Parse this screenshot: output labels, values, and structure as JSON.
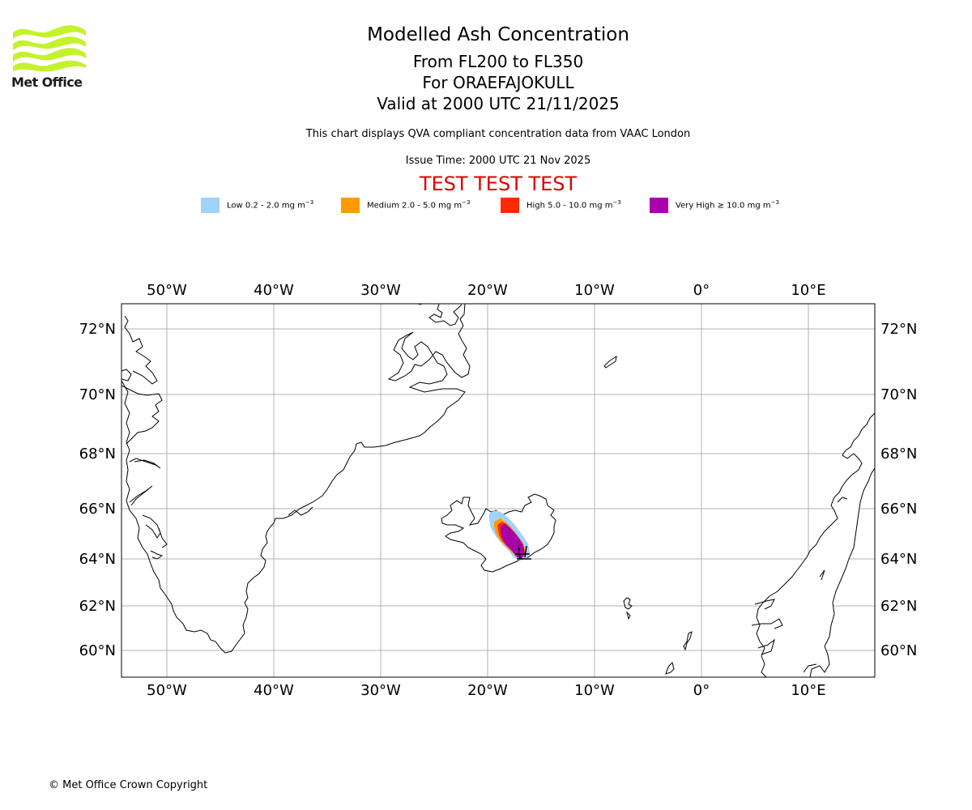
{
  "brand": {
    "name": "Met Office",
    "color": "#c4f22b"
  },
  "header": {
    "title": "Modelled Ash Concentration",
    "flight_levels": "From FL200 to FL350",
    "volcano": "For ORAEFAJOKULL",
    "valid_time": "Valid at 2000 UTC 21/11/2025",
    "description": "This chart displays QVA compliant concentration data from VAAC London",
    "issue_time": "Issue Time: 2000 UTC 21 Nov 2025",
    "test_banner": "TEST TEST TEST"
  },
  "legend": [
    {
      "key": "low",
      "text": "Low 0.2 - 2.0 mg m",
      "sup": "−3",
      "color": "#a0d2fa"
    },
    {
      "key": "medium",
      "text": "Medium 2.0 - 5.0 mg m",
      "sup": "−3",
      "color": "#ff9a00"
    },
    {
      "key": "high",
      "text": "High 5.0 - 10.0 mg m",
      "sup": "−3",
      "color": "#ff2a00"
    },
    {
      "key": "very-high",
      "text": "Very High ≥ 10.0 mg m",
      "sup": "−3",
      "color": "#aa00aa"
    }
  ],
  "map": {
    "lon_ticks": [
      "50°W",
      "40°W",
      "30°W",
      "20°W",
      "10°W",
      "0°",
      "10°E"
    ],
    "lat_ticks": [
      "72°N",
      "70°N",
      "68°N",
      "66°N",
      "64°N",
      "62°N",
      "60°N"
    ],
    "regions": [
      "Greenland",
      "Iceland",
      "Norway",
      "Faroe Islands",
      "Shetland",
      "Jan Mayen"
    ]
  },
  "footer": {
    "copyright": "© Met Office Crown Copyright"
  }
}
